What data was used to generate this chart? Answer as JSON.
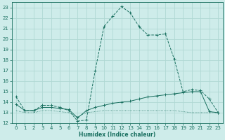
{
  "xlabel": "Humidex (Indice chaleur)",
  "background_color": "#ceecea",
  "grid_color": "#b0d8d4",
  "line_color": "#1a7060",
  "xlim": [
    -0.5,
    23.5
  ],
  "ylim": [
    12,
    23.5
  ],
  "yticks": [
    12,
    13,
    14,
    15,
    16,
    17,
    18,
    19,
    20,
    21,
    22,
    23
  ],
  "xticks": [
    0,
    1,
    2,
    3,
    4,
    5,
    6,
    7,
    8,
    9,
    10,
    11,
    12,
    13,
    14,
    15,
    16,
    17,
    18,
    19,
    20,
    21,
    22,
    23
  ],
  "series1_x": [
    0,
    1,
    2,
    3,
    4,
    5,
    6,
    7,
    8,
    9,
    10,
    11,
    12,
    13,
    14,
    15,
    16,
    17,
    18,
    19,
    20,
    21,
    22,
    23
  ],
  "series1_y": [
    14.5,
    13.2,
    13.2,
    13.7,
    13.7,
    13.5,
    13.2,
    12.2,
    12.3,
    17.0,
    21.2,
    22.2,
    23.1,
    22.5,
    21.2,
    20.4,
    20.4,
    20.5,
    18.1,
    15.0,
    15.2,
    15.1,
    14.3,
    13.0
  ],
  "series2_x": [
    0,
    1,
    2,
    3,
    4,
    5,
    6,
    7,
    8,
    9,
    10,
    11,
    12,
    13,
    14,
    15,
    16,
    17,
    18,
    19,
    20,
    21,
    22,
    23
  ],
  "series2_y": [
    13.8,
    13.2,
    13.2,
    13.5,
    13.5,
    13.4,
    13.3,
    12.5,
    13.2,
    13.5,
    13.7,
    13.9,
    14.0,
    14.1,
    14.3,
    14.5,
    14.6,
    14.7,
    14.8,
    14.9,
    15.0,
    15.0,
    13.1,
    13.0
  ],
  "series3_x": [
    0,
    1,
    2,
    3,
    4,
    5,
    6,
    7,
    8,
    9,
    10,
    11,
    12,
    13,
    14,
    15,
    16,
    17,
    18,
    19,
    20,
    21,
    22,
    23
  ],
  "series3_y": [
    13.2,
    13.0,
    13.0,
    13.2,
    13.2,
    13.1,
    13.0,
    12.6,
    13.0,
    13.1,
    13.2,
    13.2,
    13.2,
    13.2,
    13.2,
    13.2,
    13.2,
    13.2,
    13.2,
    13.1,
    13.0,
    13.0,
    13.0,
    13.0
  ]
}
